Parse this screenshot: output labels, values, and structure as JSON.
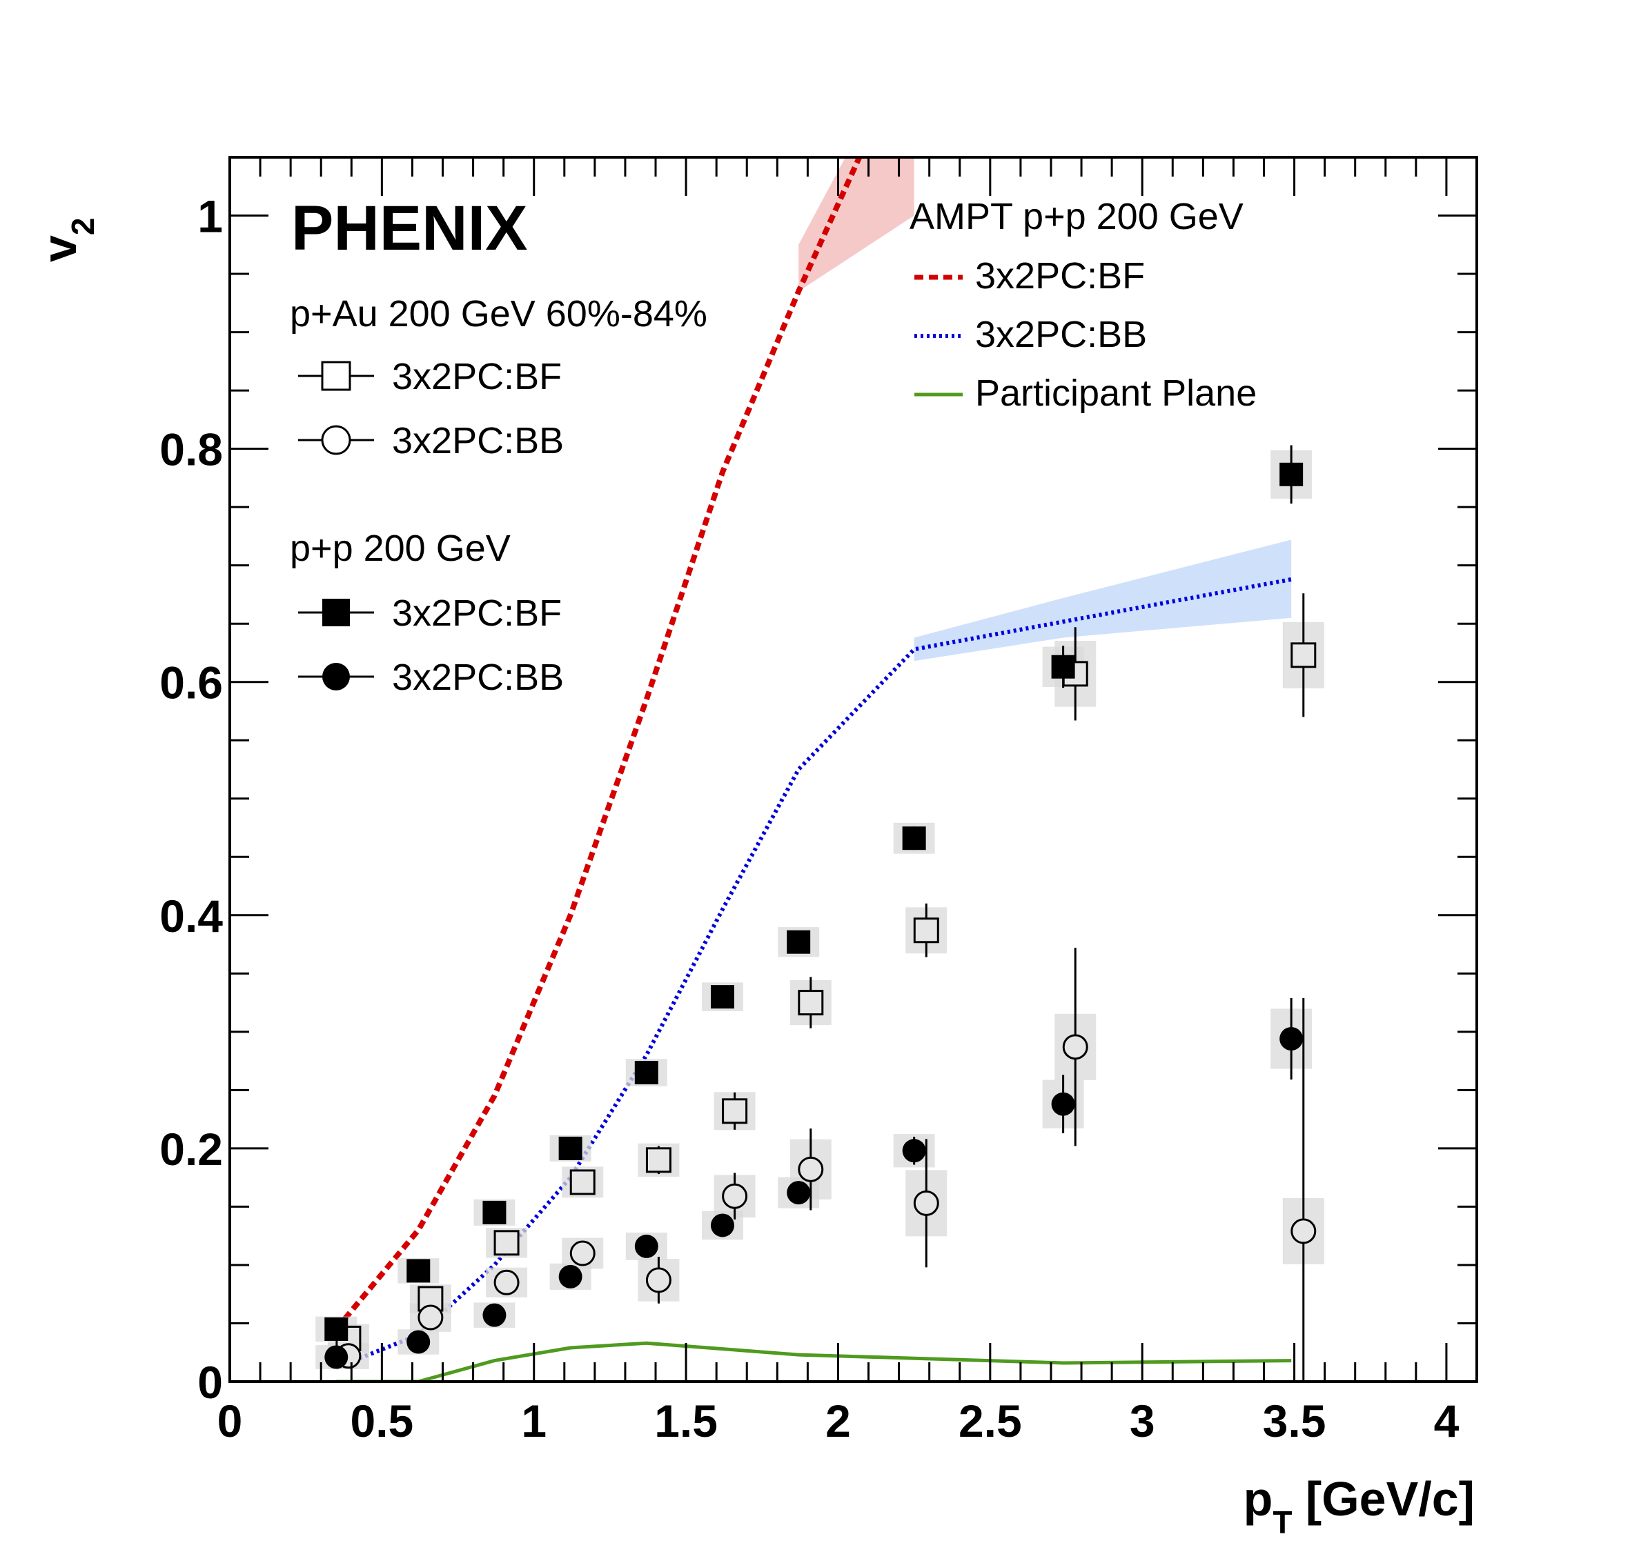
{
  "chart_data": {
    "type": "scatter",
    "experiment_label": "PHENIX",
    "xlabel": "p",
    "xlabel_sub": "T",
    "xlabel_unit": " [GeV/c]",
    "ylabel": "v",
    "ylabel_sub": "2",
    "xlim": [
      0,
      4.1
    ],
    "ylim": [
      0,
      1.05
    ],
    "x_ticks": [
      0,
      0.5,
      1,
      1.5,
      2,
      2.5,
      3,
      3.5,
      4
    ],
    "x_tick_labels": [
      "0",
      "0.5",
      "1",
      "1.5",
      "2",
      "2.5",
      "3",
      "3.5",
      "4"
    ],
    "y_ticks": [
      0,
      0.2,
      0.4,
      0.6,
      0.8,
      1
    ],
    "y_tick_labels": [
      "0",
      "0.2",
      "0.4",
      "0.6",
      "0.8",
      "1"
    ],
    "grid": false,
    "legend_left": {
      "group1_title": "p+Au 200 GeV 60%-84%",
      "group1_items": [
        "3x2PC:BF",
        "3x2PC:BB"
      ],
      "group2_title": "p+p 200 GeV",
      "group2_items": [
        "3x2PC:BF",
        "3x2PC:BB"
      ]
    },
    "legend_right": {
      "title": "AMPT p+p 200 GeV",
      "items": [
        "3x2PC:BF",
        "3x2PC:BB",
        "Participant Plane"
      ]
    },
    "colors": {
      "ampt_bf": "#d40000",
      "ampt_bb": "#0000dd",
      "participant": "#4f9a1f",
      "bf_band": "#f6c9c9",
      "bb_band": "#cfe0fa",
      "sys_box": "#d9d9d9",
      "open_fill": "#e6e6e6"
    },
    "series": [
      {
        "name": "p+Au 3x2PC:BF",
        "marker": "open-square",
        "points": [
          {
            "x": 0.39,
            "y": 0.037,
            "err": 0.008
          },
          {
            "x": 0.66,
            "y": 0.071,
            "err": 0.008
          },
          {
            "x": 0.91,
            "y": 0.119,
            "err": 0.009
          },
          {
            "x": 1.16,
            "y": 0.171,
            "err": 0.01
          },
          {
            "x": 1.41,
            "y": 0.19,
            "err": 0.012
          },
          {
            "x": 1.66,
            "y": 0.232,
            "err": 0.016
          },
          {
            "x": 1.91,
            "y": 0.325,
            "err": 0.022
          },
          {
            "x": 2.29,
            "y": 0.387,
            "err": 0.023
          },
          {
            "x": 2.78,
            "y": 0.607,
            "err": 0.04
          },
          {
            "x": 3.53,
            "y": 0.623,
            "err": 0.053
          }
        ]
      },
      {
        "name": "p+Au 3x2PC:BB",
        "marker": "open-circle",
        "points": [
          {
            "x": 0.39,
            "y": 0.022,
            "err": 0.006
          },
          {
            "x": 0.66,
            "y": 0.055,
            "err": 0.008
          },
          {
            "x": 0.91,
            "y": 0.085,
            "err": 0.009
          },
          {
            "x": 1.16,
            "y": 0.11,
            "err": 0.01
          },
          {
            "x": 1.41,
            "y": 0.087,
            "err": 0.02
          },
          {
            "x": 1.66,
            "y": 0.159,
            "err": 0.02
          },
          {
            "x": 1.91,
            "y": 0.182,
            "err": 0.035
          },
          {
            "x": 2.29,
            "y": 0.153,
            "err": 0.055
          },
          {
            "x": 2.78,
            "y": 0.287,
            "err": 0.085
          },
          {
            "x": 3.53,
            "y": 0.129,
            "err": 0.2
          }
        ]
      },
      {
        "name": "p+p 3x2PC:BF",
        "marker": "filled-square",
        "points": [
          {
            "x": 0.35,
            "y": 0.045,
            "err": 0.005
          },
          {
            "x": 0.62,
            "y": 0.095,
            "err": 0.005
          },
          {
            "x": 0.87,
            "y": 0.145,
            "err": 0.006
          },
          {
            "x": 1.12,
            "y": 0.2,
            "err": 0.006
          },
          {
            "x": 1.37,
            "y": 0.265,
            "err": 0.007
          },
          {
            "x": 1.62,
            "y": 0.33,
            "err": 0.008
          },
          {
            "x": 1.87,
            "y": 0.377,
            "err": 0.009
          },
          {
            "x": 2.25,
            "y": 0.466,
            "err": 0.01
          },
          {
            "x": 2.74,
            "y": 0.613,
            "err": 0.018
          },
          {
            "x": 3.49,
            "y": 0.778,
            "err": 0.025
          }
        ]
      },
      {
        "name": "p+p 3x2PC:BB",
        "marker": "filled-circle",
        "points": [
          {
            "x": 0.35,
            "y": 0.021,
            "err": 0.004
          },
          {
            "x": 0.62,
            "y": 0.034,
            "err": 0.005
          },
          {
            "x": 0.87,
            "y": 0.057,
            "err": 0.005
          },
          {
            "x": 1.12,
            "y": 0.09,
            "err": 0.006
          },
          {
            "x": 1.37,
            "y": 0.116,
            "err": 0.007
          },
          {
            "x": 1.62,
            "y": 0.134,
            "err": 0.008
          },
          {
            "x": 1.87,
            "y": 0.162,
            "err": 0.01
          },
          {
            "x": 2.25,
            "y": 0.198,
            "err": 0.012
          },
          {
            "x": 2.74,
            "y": 0.238,
            "err": 0.025
          },
          {
            "x": 3.49,
            "y": 0.294,
            "err": 0.035
          }
        ]
      }
    ],
    "curves": [
      {
        "name": "AMPT 3x2PC:BF",
        "style": "dashed",
        "x": [
          0.35,
          0.62,
          0.87,
          1.12,
          1.37,
          1.62,
          1.87,
          2.07
        ],
        "y": [
          0.045,
          0.13,
          0.245,
          0.4,
          0.585,
          0.78,
          0.935,
          1.05
        ],
        "band": {
          "x": [
            1.87,
            2.25
          ],
          "low": [
            0.935,
            1.0
          ],
          "high": [
            0.975,
            1.16
          ]
        }
      },
      {
        "name": "AMPT 3x2PC:BB",
        "style": "dotted",
        "x": [
          0.35,
          0.62,
          0.87,
          1.12,
          1.37,
          1.62,
          1.87,
          2.25,
          3.49
        ],
        "y": [
          0.012,
          0.04,
          0.1,
          0.175,
          0.28,
          0.405,
          0.525,
          0.628,
          0.688
        ],
        "band": {
          "x": [
            2.25,
            2.74,
            3.49
          ],
          "low": [
            0.618,
            0.638,
            0.655
          ],
          "high": [
            0.638,
            0.672,
            0.722
          ]
        }
      },
      {
        "name": "Participant Plane",
        "style": "solid",
        "x": [
          0.35,
          0.62,
          0.87,
          1.12,
          1.37,
          1.62,
          1.87,
          2.25,
          2.74,
          3.49
        ],
        "y": [
          0.0,
          0.0,
          0.018,
          0.029,
          0.033,
          0.028,
          0.023,
          0.02,
          0.016,
          0.018
        ]
      }
    ]
  }
}
